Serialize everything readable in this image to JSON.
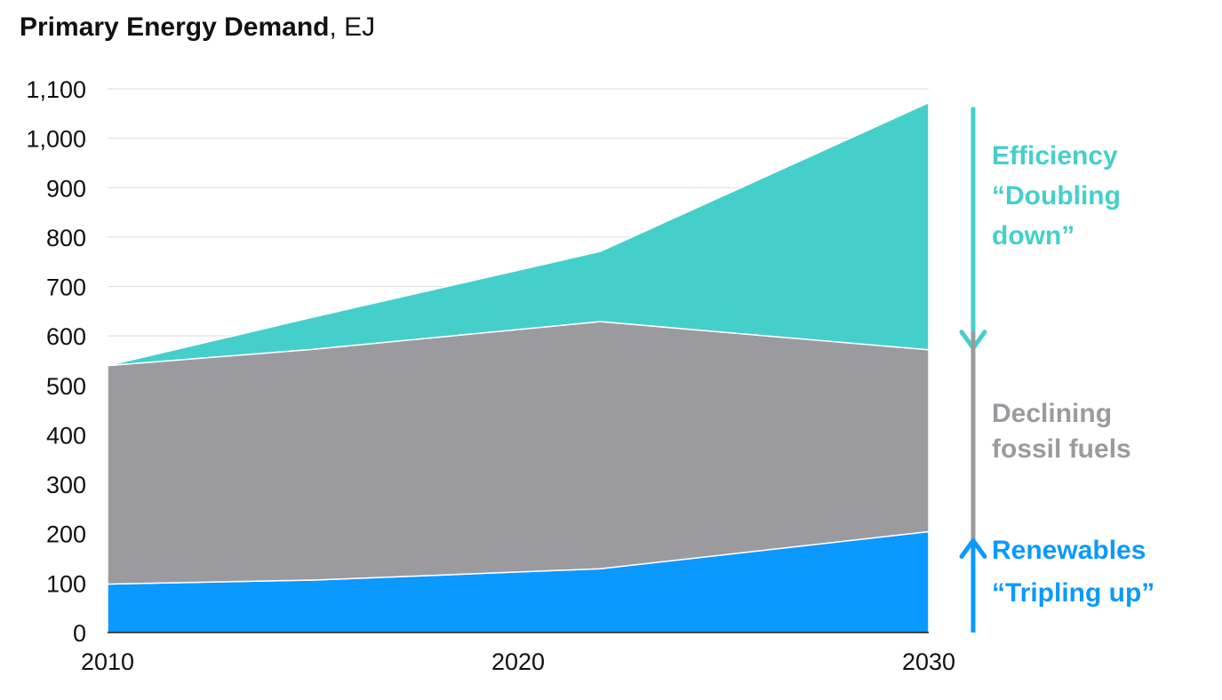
{
  "title": {
    "bold": "Primary Energy Demand",
    "rest": ", EJ"
  },
  "chart_data": {
    "type": "area",
    "stacked": true,
    "title": "Primary Energy Demand, EJ",
    "xlabel": "",
    "ylabel": "",
    "xlim": [
      2010,
      2030
    ],
    "ylim": [
      0,
      1100
    ],
    "x_ticks": [
      2010,
      2020,
      2030
    ],
    "y_ticks": [
      0,
      100,
      200,
      300,
      400,
      500,
      600,
      700,
      800,
      900,
      1000,
      1100
    ],
    "grid": true,
    "x": [
      2010,
      2015,
      2022,
      2030
    ],
    "series": [
      {
        "key": "renewables",
        "values": [
          98,
          106,
          129,
          204
        ],
        "color": "#0b99ff"
      },
      {
        "key": "fossil",
        "values": [
          442,
          467,
          500,
          368
        ],
        "color": "#9b9a9f"
      },
      {
        "key": "efficiency",
        "values": [
          0,
          65,
          142,
          500
        ],
        "color": "#45cfcb"
      }
    ],
    "annotations": [
      {
        "key": "efficiency",
        "lines": [
          "Efficiency",
          "“Doubling",
          "down”"
        ],
        "color": "#45cfcb",
        "arrow": "down"
      },
      {
        "key": "fossil",
        "lines": [
          "Declining",
          "fossil fuels"
        ],
        "color": "#9b9a9f",
        "arrow": "none"
      },
      {
        "key": "renewables",
        "lines": [
          "Renewables",
          "“Tripling up”"
        ],
        "color": "#0b99ff",
        "arrow": "up"
      }
    ]
  }
}
